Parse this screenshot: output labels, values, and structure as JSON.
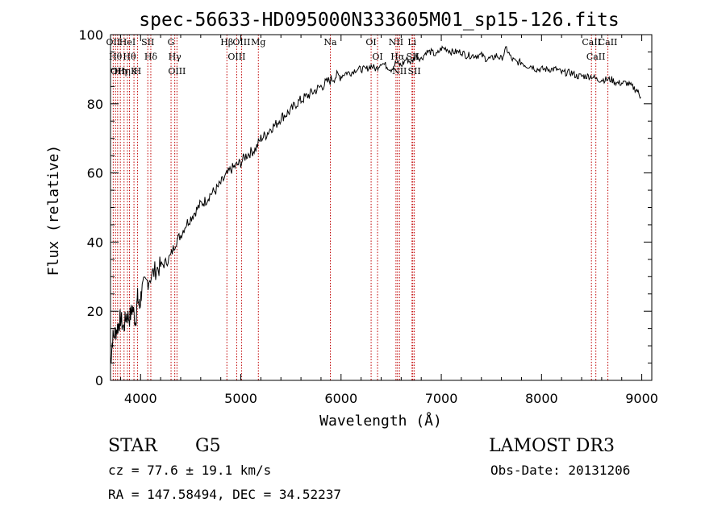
{
  "chart_data": {
    "type": "line",
    "title": "spec-56633-HD095000N333605M01_sp15-126.fits",
    "xlabel": "Wavelength (Å)",
    "ylabel": "Flux (relative)",
    "xlim": [
      3700,
      9100
    ],
    "ylim": [
      0,
      100
    ],
    "x_ticks": [
      4000,
      5000,
      6000,
      7000,
      8000,
      9000
    ],
    "y_ticks": [
      0,
      20,
      40,
      60,
      80,
      100
    ],
    "grid": false,
    "series": [
      {
        "name": "flux",
        "x": [
          3700,
          3720,
          3750,
          3780,
          3800,
          3830,
          3860,
          3890,
          3920,
          3950,
          3970,
          3990,
          4010,
          4050,
          4100,
          4150,
          4200,
          4250,
          4300,
          4350,
          4400,
          4450,
          4500,
          4550,
          4600,
          4650,
          4700,
          4750,
          4800,
          4850,
          4900,
          4950,
          5000,
          5050,
          5100,
          5150,
          5200,
          5250,
          5300,
          5350,
          5400,
          5450,
          5500,
          5550,
          5600,
          5650,
          5700,
          5750,
          5800,
          5850,
          5900,
          5950,
          6000,
          6050,
          6100,
          6150,
          6200,
          6250,
          6300,
          6350,
          6400,
          6450,
          6500,
          6550,
          6600,
          6650,
          6700,
          6750,
          6800,
          6850,
          6900,
          6950,
          7000,
          7050,
          7100,
          7150,
          7200,
          7250,
          7300,
          7350,
          7400,
          7450,
          7500,
          7550,
          7600,
          7650,
          7700,
          7750,
          7800,
          7850,
          7900,
          7950,
          8000,
          8050,
          8100,
          8150,
          8200,
          8250,
          8300,
          8350,
          8400,
          8450,
          8500,
          8550,
          8600,
          8650,
          8700,
          8750,
          8800,
          8850,
          8900,
          8950,
          8990
        ],
        "y": [
          5,
          12,
          14,
          16,
          18,
          15,
          19,
          18,
          21,
          17,
          24,
          21,
          26,
          28,
          30,
          32,
          33,
          34,
          36,
          40,
          42,
          45,
          47,
          49,
          51,
          52,
          54,
          55,
          57,
          59,
          61,
          62,
          63,
          65,
          66,
          67,
          70,
          71,
          73,
          74,
          76,
          77,
          78,
          80,
          81,
          82,
          83,
          84,
          85,
          86,
          87,
          88,
          88,
          89,
          89,
          90,
          90,
          90,
          91,
          90,
          92,
          91,
          90,
          92,
          91,
          93,
          92,
          94,
          93,
          95,
          95,
          94,
          96,
          96,
          95,
          95,
          95,
          94,
          94,
          94,
          94,
          93,
          93,
          94,
          93,
          96,
          93,
          92,
          92,
          91,
          91,
          90,
          90,
          90,
          90,
          90,
          89,
          89,
          89,
          88,
          88,
          88,
          88,
          87,
          87,
          87,
          87,
          86,
          86,
          86,
          85,
          84,
          82
        ]
      }
    ],
    "lines": [
      {
        "wavelength": 3727,
        "label": "OII"
      },
      {
        "wavelength": 3750,
        "label": "Hθ"
      },
      {
        "wavelength": 3771,
        "label": "OII"
      },
      {
        "wavelength": 3798,
        "label": "Hη"
      },
      {
        "wavelength": 3835,
        "label": "Hη"
      },
      {
        "wavelength": 3869,
        "label": "HeI"
      },
      {
        "wavelength": 3889,
        "label": "Hθ"
      },
      {
        "wavelength": 3934,
        "label": "K"
      },
      {
        "wavelength": 3969,
        "label": "H"
      },
      {
        "wavelength": 4072,
        "label": "SII"
      },
      {
        "wavelength": 4102,
        "label": "Hδ"
      },
      {
        "wavelength": 4304,
        "label": "G"
      },
      {
        "wavelength": 4341,
        "label": "Hγ"
      },
      {
        "wavelength": 4363,
        "label": "OIII"
      },
      {
        "wavelength": 4861,
        "label": "Hβ"
      },
      {
        "wavelength": 4959,
        "label": "OIII"
      },
      {
        "wavelength": 5007,
        "label": "OIII"
      },
      {
        "wavelength": 5175,
        "label": "Mg"
      },
      {
        "wavelength": 5893,
        "label": "Na"
      },
      {
        "wavelength": 6300,
        "label": "OI"
      },
      {
        "wavelength": 6364,
        "label": "OI"
      },
      {
        "wavelength": 6548,
        "label": "NII"
      },
      {
        "wavelength": 6563,
        "label": "Hα"
      },
      {
        "wavelength": 6583,
        "label": "NII"
      },
      {
        "wavelength": 6708,
        "label": "Li"
      },
      {
        "wavelength": 6716,
        "label": "SII"
      },
      {
        "wavelength": 6731,
        "label": "SII"
      },
      {
        "wavelength": 8498,
        "label": "CaII"
      },
      {
        "wavelength": 8542,
        "label": "CaII"
      },
      {
        "wavelength": 8662,
        "label": "CaII"
      }
    ],
    "annotations": {
      "object_class": "STAR",
      "subclass": "G5",
      "survey": "LAMOST DR3",
      "redshift": "cz = 77.6 ± 19.1 km/s",
      "obs_date": "Obs-Date: 20131206",
      "coordinates": "RA = 147.58494, DEC =  34.52237"
    }
  }
}
